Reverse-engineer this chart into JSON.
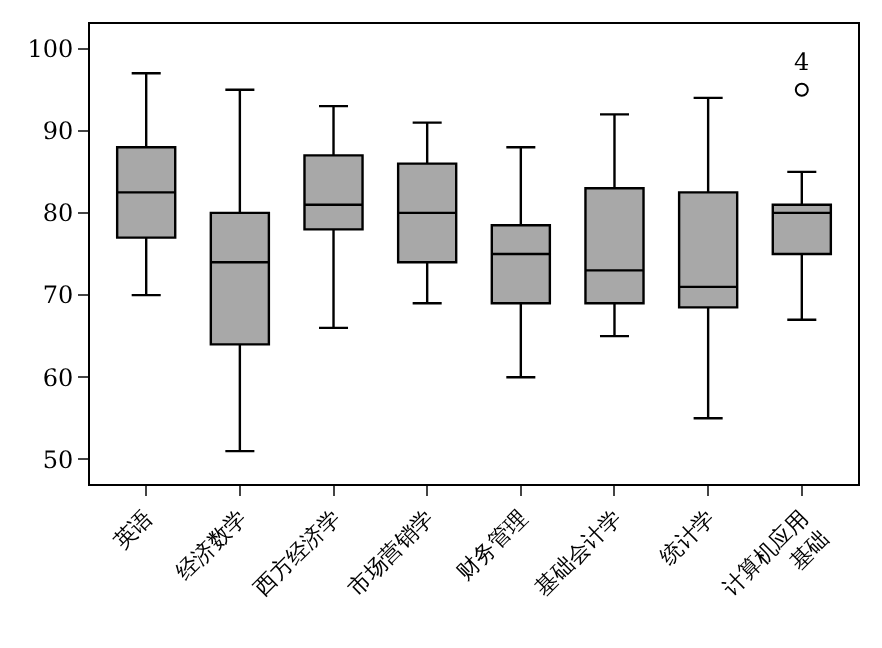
{
  "chart_data": {
    "type": "box",
    "categories": [
      "英语",
      "经济数学",
      "西方经济学",
      "市场营销学",
      "财务管理",
      "基础会计学",
      "统计学",
      "计算机应用\n基础"
    ],
    "boxes": [
      {
        "low": 70,
        "q1": 77,
        "median": 82.5,
        "q3": 88,
        "high": 97
      },
      {
        "low": 51,
        "q1": 64,
        "median": 74,
        "q3": 80,
        "high": 95
      },
      {
        "low": 66,
        "q1": 78,
        "median": 81,
        "q3": 87,
        "high": 93
      },
      {
        "low": 69,
        "q1": 74,
        "median": 80,
        "q3": 86,
        "high": 91
      },
      {
        "low": 60,
        "q1": 69,
        "median": 75,
        "q3": 78.5,
        "high": 88
      },
      {
        "low": 65,
        "q1": 69,
        "median": 73,
        "q3": 83,
        "high": 92
      },
      {
        "low": 55,
        "q1": 68.5,
        "median": 71,
        "q3": 82.5,
        "high": 94
      },
      {
        "low": 67,
        "q1": 75,
        "median": 80,
        "q3": 81,
        "high": 85,
        "outliers": [
          95
        ]
      }
    ],
    "color": "#a8a8a8",
    "ylim": [
      47,
      103
    ],
    "yticks": [
      50,
      60,
      70,
      80,
      90,
      100
    ],
    "annotations": [
      "4"
    ]
  }
}
